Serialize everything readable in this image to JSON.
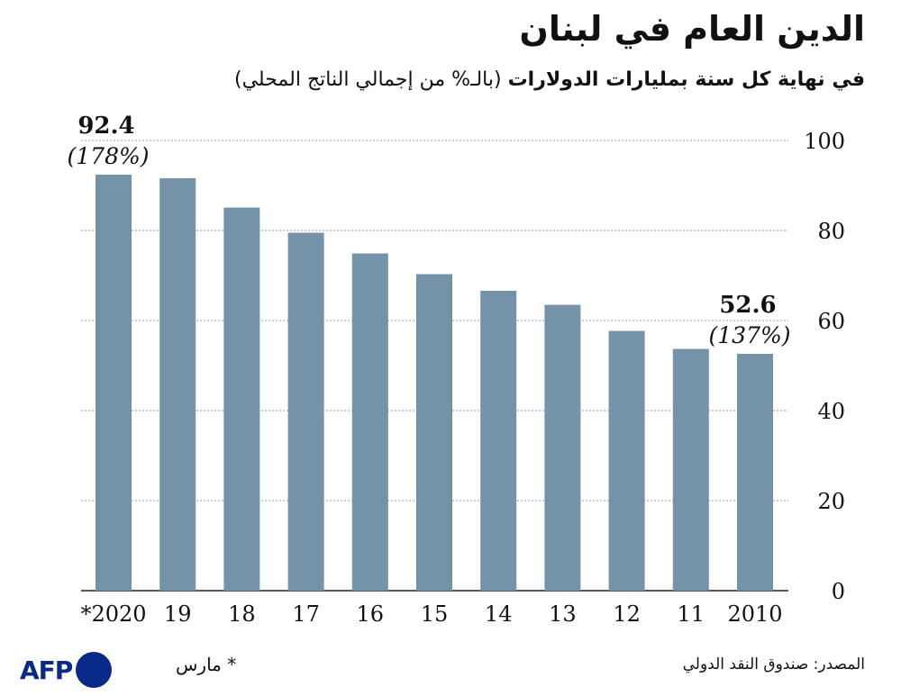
{
  "header": {
    "title": "الدين العام في لبنان",
    "subtitle_bold": "في نهاية كل سنة بمليارات الدولارات",
    "subtitle_regular": " (بالـ% من إجمالي الناتج المحلي)"
  },
  "footer": {
    "source": "المصدر: صندوق النقد الدولي",
    "note": "* مارس",
    "logo_text": "AFP"
  },
  "colors": {
    "bar": "#7593a8",
    "grid": "#9a9a9a",
    "text": "#111111",
    "logo": "#0a2a8a"
  },
  "chart_data": {
    "type": "bar",
    "title": "الدين العام في لبنان",
    "categories": [
      "2010",
      "11",
      "12",
      "13",
      "14",
      "15",
      "16",
      "17",
      "18",
      "19",
      "2020*"
    ],
    "category_labels": [
      "2010",
      "11",
      "12",
      "13",
      "14",
      "15",
      "16",
      "17",
      "18",
      "19",
      "*2020"
    ],
    "values": [
      52.6,
      53.7,
      57.7,
      63.5,
      66.6,
      70.3,
      74.9,
      79.5,
      85.1,
      91.6,
      92.4
    ],
    "ylim": [
      0,
      100
    ],
    "yticks": [
      0,
      20,
      40,
      60,
      80,
      100
    ],
    "grid": true,
    "x_direction": "right-to-left",
    "y_axis_side": "right",
    "annotations": [
      {
        "category": "2020*",
        "value_label": "92.4",
        "pct_label": "(178%)"
      },
      {
        "category": "2010",
        "value_label": "52.6",
        "pct_label": "(137%)"
      }
    ]
  }
}
